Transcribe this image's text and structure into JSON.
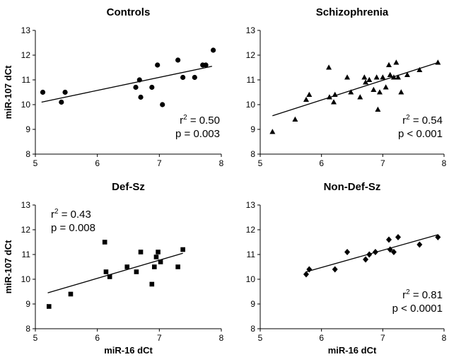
{
  "chart_data": [
    {
      "type": "scatter",
      "title": "Controls",
      "xlabel": "",
      "ylabel": "miR-107 dCt",
      "xlim": [
        5,
        8
      ],
      "ylim": [
        8,
        13
      ],
      "xticks": [
        "5",
        "6",
        "7",
        "8"
      ],
      "yticks": [
        "8",
        "9",
        "10",
        "11",
        "12",
        "13"
      ],
      "marker": "circle",
      "points": [
        {
          "x": 5.12,
          "y": 10.5
        },
        {
          "x": 5.42,
          "y": 10.1
        },
        {
          "x": 5.48,
          "y": 10.5
        },
        {
          "x": 6.62,
          "y": 10.7
        },
        {
          "x": 6.68,
          "y": 11.0
        },
        {
          "x": 6.7,
          "y": 10.3
        },
        {
          "x": 6.88,
          "y": 10.7
        },
        {
          "x": 6.97,
          "y": 11.6
        },
        {
          "x": 7.05,
          "y": 10.0
        },
        {
          "x": 7.3,
          "y": 11.8
        },
        {
          "x": 7.38,
          "y": 11.1
        },
        {
          "x": 7.57,
          "y": 11.1
        },
        {
          "x": 7.7,
          "y": 11.6
        },
        {
          "x": 7.75,
          "y": 11.6
        },
        {
          "x": 7.87,
          "y": 12.2
        }
      ],
      "fit": {
        "x": [
          5.1,
          7.85
        ],
        "y": [
          10.1,
          11.55
        ]
      },
      "stats": {
        "r2": "0.50",
        "p": "p = 0.003"
      },
      "stats_position": "bottom-right"
    },
    {
      "type": "scatter",
      "title": "Schizophrenia",
      "xlabel": "",
      "ylabel": "",
      "xlim": [
        5,
        8
      ],
      "ylim": [
        8,
        13
      ],
      "xticks": [
        "5",
        "6",
        "7",
        "8"
      ],
      "yticks": [
        "8",
        "9",
        "10",
        "11",
        "12",
        "13"
      ],
      "marker": "triangle",
      "points": [
        {
          "x": 5.2,
          "y": 8.9
        },
        {
          "x": 5.57,
          "y": 9.4
        },
        {
          "x": 5.75,
          "y": 10.2
        },
        {
          "x": 5.8,
          "y": 10.4
        },
        {
          "x": 6.12,
          "y": 11.5
        },
        {
          "x": 6.13,
          "y": 10.3
        },
        {
          "x": 6.2,
          "y": 10.1
        },
        {
          "x": 6.22,
          "y": 10.4
        },
        {
          "x": 6.42,
          "y": 11.1
        },
        {
          "x": 6.48,
          "y": 10.5
        },
        {
          "x": 6.63,
          "y": 10.3
        },
        {
          "x": 6.7,
          "y": 11.1
        },
        {
          "x": 6.72,
          "y": 10.9
        },
        {
          "x": 6.78,
          "y": 11.0
        },
        {
          "x": 6.85,
          "y": 10.6
        },
        {
          "x": 6.9,
          "y": 11.1
        },
        {
          "x": 6.92,
          "y": 9.8
        },
        {
          "x": 6.95,
          "y": 10.5
        },
        {
          "x": 7.0,
          "y": 11.1
        },
        {
          "x": 7.05,
          "y": 10.7
        },
        {
          "x": 7.1,
          "y": 11.6
        },
        {
          "x": 7.12,
          "y": 11.2
        },
        {
          "x": 7.18,
          "y": 11.1
        },
        {
          "x": 7.22,
          "y": 11.7
        },
        {
          "x": 7.25,
          "y": 11.1
        },
        {
          "x": 7.3,
          "y": 10.5
        },
        {
          "x": 7.4,
          "y": 11.2
        },
        {
          "x": 7.6,
          "y": 11.4
        },
        {
          "x": 7.9,
          "y": 11.7
        }
      ],
      "fit": {
        "x": [
          5.2,
          7.9
        ],
        "y": [
          9.55,
          11.7
        ]
      },
      "stats": {
        "r2": "0.54",
        "p": "p < 0.001"
      },
      "stats_position": "bottom-right"
    },
    {
      "type": "scatter",
      "title": "Def-Sz",
      "xlabel": "miR-16 dCt",
      "ylabel": "miR-107 dCt",
      "xlim": [
        5,
        8
      ],
      "ylim": [
        8,
        13
      ],
      "xticks": [
        "5",
        "6",
        "7",
        "8"
      ],
      "yticks": [
        "8",
        "9",
        "10",
        "11",
        "12",
        "13"
      ],
      "marker": "square",
      "points": [
        {
          "x": 5.22,
          "y": 8.9
        },
        {
          "x": 5.57,
          "y": 9.4
        },
        {
          "x": 6.12,
          "y": 11.5
        },
        {
          "x": 6.14,
          "y": 10.3
        },
        {
          "x": 6.2,
          "y": 10.1
        },
        {
          "x": 6.48,
          "y": 10.5
        },
        {
          "x": 6.63,
          "y": 10.3
        },
        {
          "x": 6.7,
          "y": 11.1
        },
        {
          "x": 6.88,
          "y": 9.8
        },
        {
          "x": 6.92,
          "y": 10.5
        },
        {
          "x": 6.95,
          "y": 10.9
        },
        {
          "x": 6.98,
          "y": 11.1
        },
        {
          "x": 7.02,
          "y": 10.7
        },
        {
          "x": 7.3,
          "y": 10.5
        },
        {
          "x": 7.38,
          "y": 11.2
        }
      ],
      "fit": {
        "x": [
          5.2,
          7.38
        ],
        "y": [
          9.45,
          11.05
        ]
      },
      "stats": {
        "r2": "0.43",
        "p": "p = 0.008"
      },
      "stats_position": "top-left"
    },
    {
      "type": "scatter",
      "title": "Non-Def-Sz",
      "xlabel": "miR-16 dCt",
      "ylabel": "",
      "xlim": [
        5,
        8
      ],
      "ylim": [
        8,
        13
      ],
      "xticks": [
        "5",
        "6",
        "7",
        "8"
      ],
      "yticks": [
        "8",
        "9",
        "10",
        "11",
        "12",
        "13"
      ],
      "marker": "diamond",
      "points": [
        {
          "x": 5.75,
          "y": 10.2
        },
        {
          "x": 5.8,
          "y": 10.4
        },
        {
          "x": 6.22,
          "y": 10.4
        },
        {
          "x": 6.42,
          "y": 11.1
        },
        {
          "x": 6.72,
          "y": 10.8
        },
        {
          "x": 6.78,
          "y": 11.0
        },
        {
          "x": 6.88,
          "y": 11.1
        },
        {
          "x": 7.1,
          "y": 11.6
        },
        {
          "x": 7.12,
          "y": 11.2
        },
        {
          "x": 7.18,
          "y": 11.1
        },
        {
          "x": 7.25,
          "y": 11.7
        },
        {
          "x": 7.6,
          "y": 11.4
        },
        {
          "x": 7.9,
          "y": 11.7
        }
      ],
      "fit": {
        "x": [
          5.75,
          7.9
        ],
        "y": [
          10.3,
          11.8
        ]
      },
      "stats": {
        "r2": "0.81",
        "p": "p < 0.0001"
      },
      "stats_position": "bottom-right"
    }
  ]
}
